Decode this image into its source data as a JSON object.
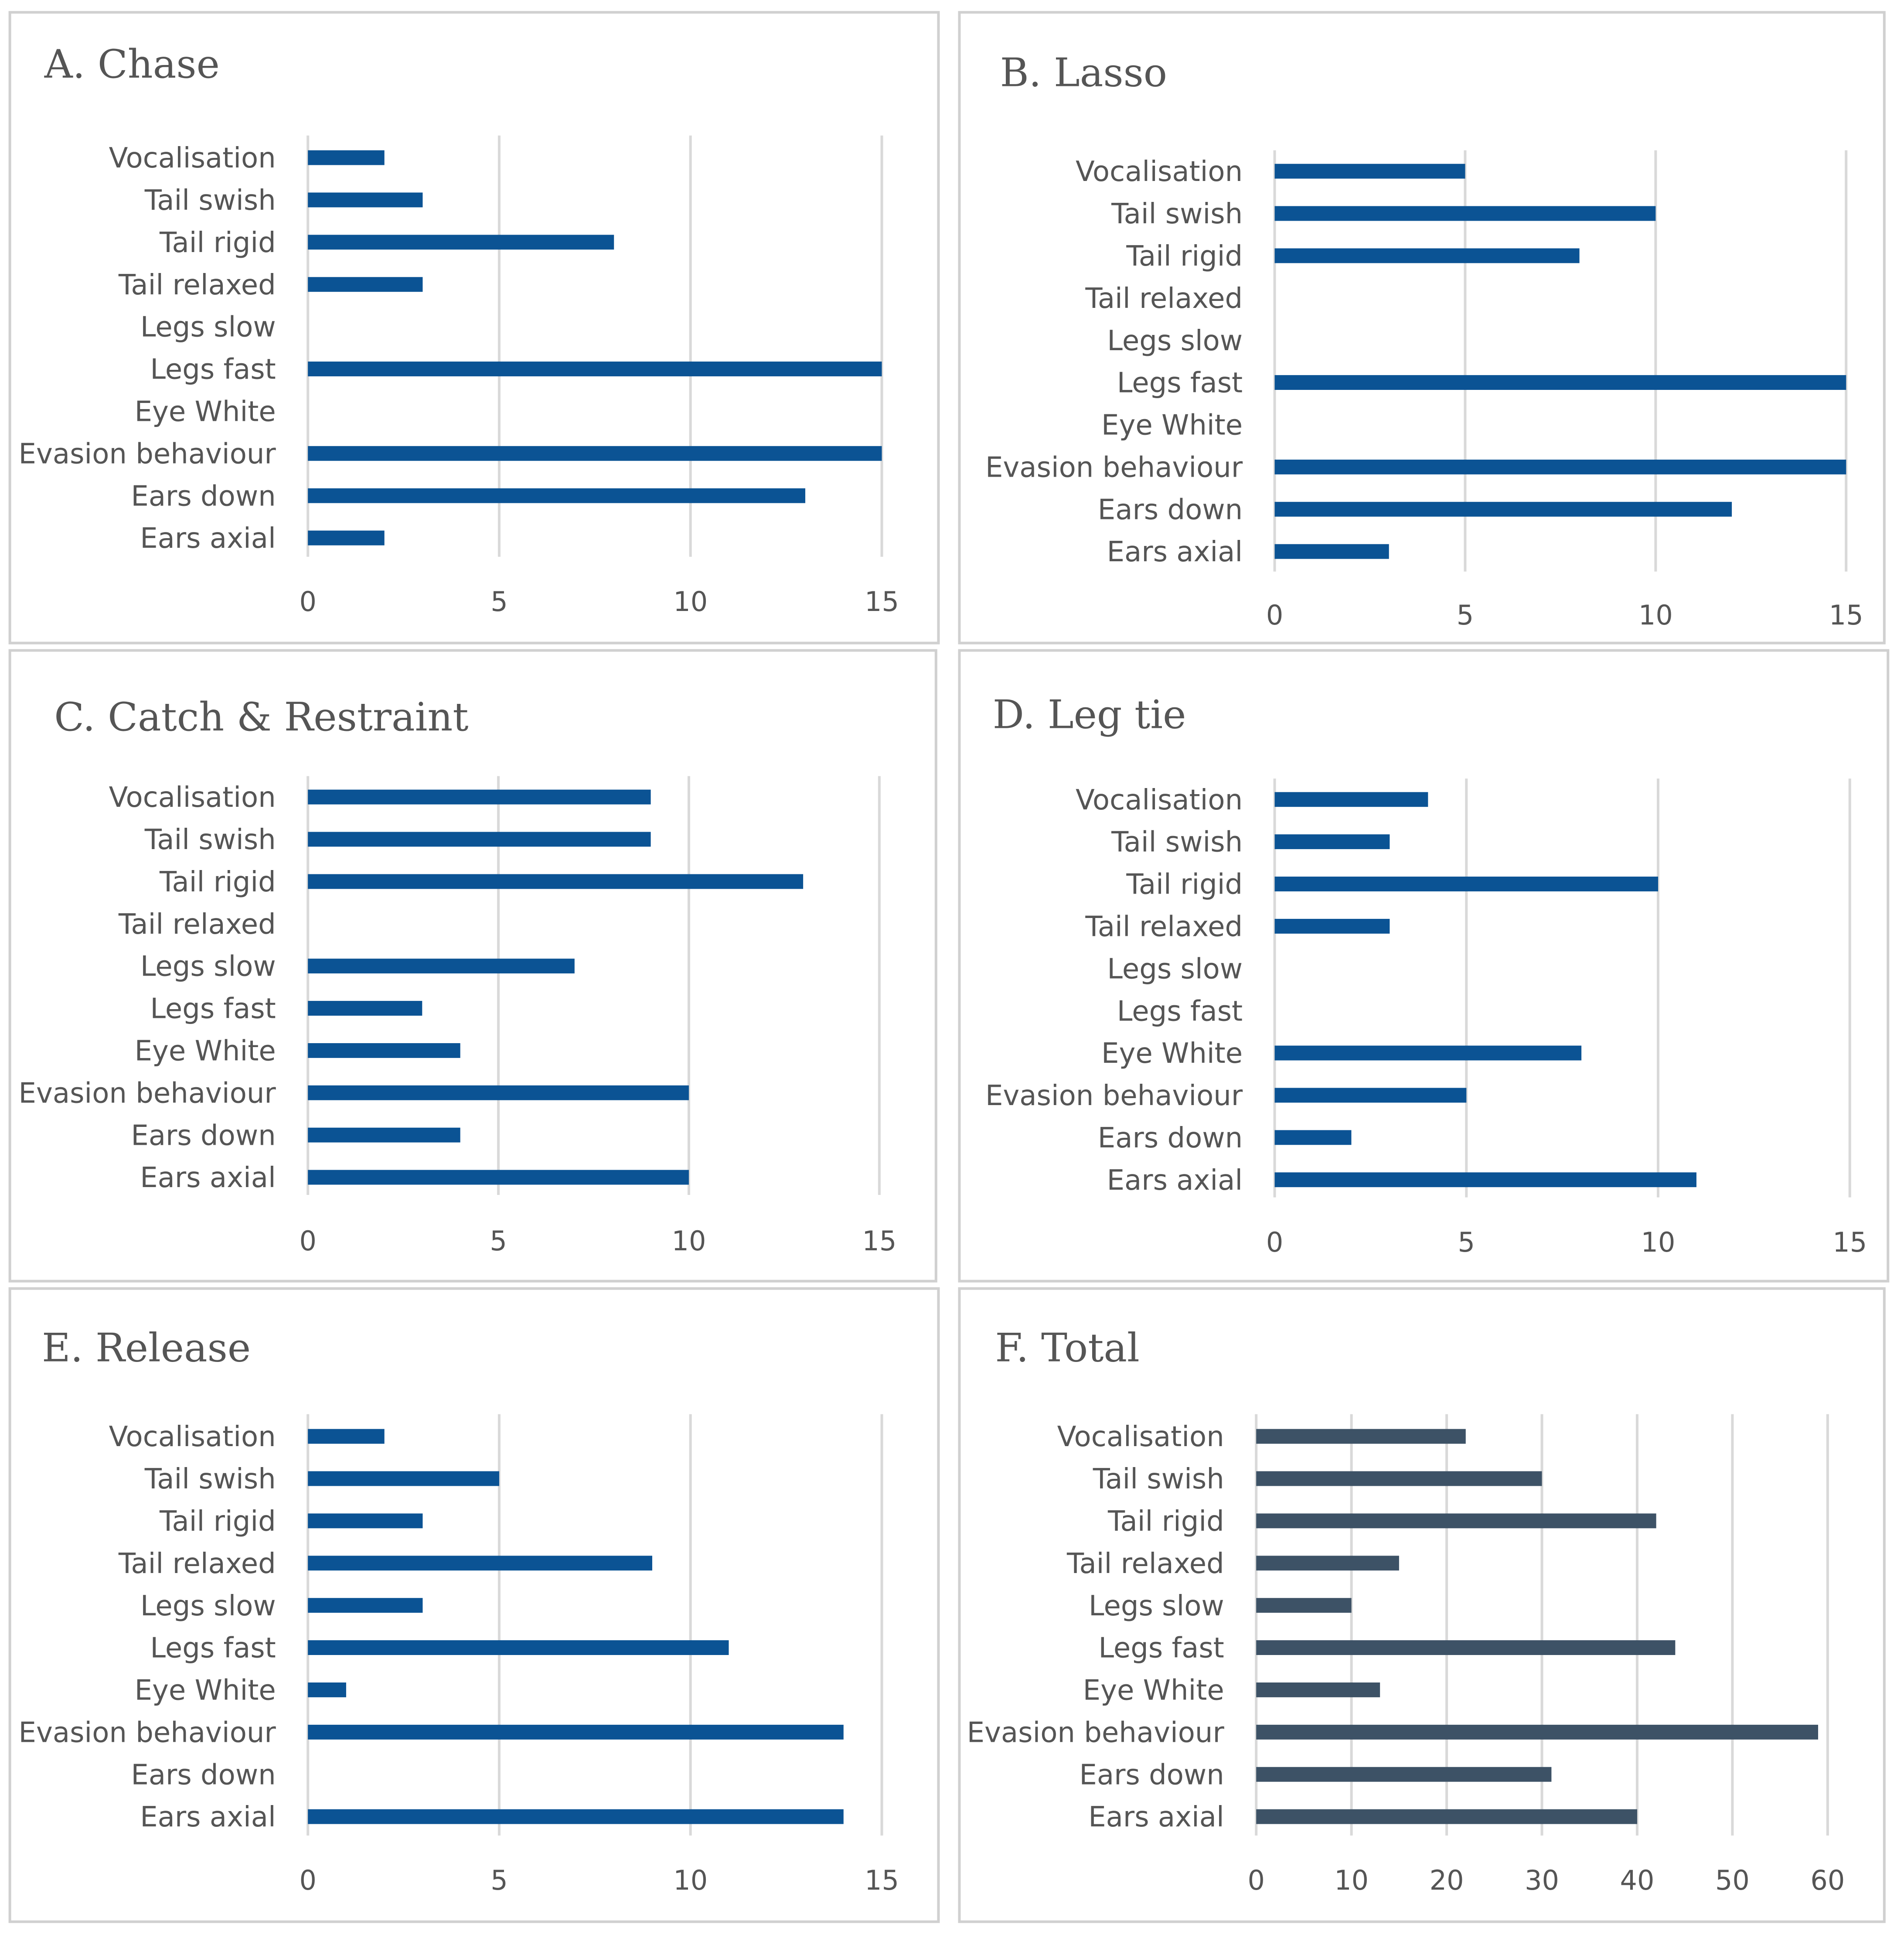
{
  "colors": {
    "primary": "#0b5394",
    "total": "#3d5266"
  },
  "chart_data": [
    {
      "type": "bar",
      "orientation": "horizontal",
      "title": "A. Chase",
      "categories": [
        "Vocalisation",
        "Tail swish",
        "Tail rigid",
        "Tail relaxed",
        "Legs slow",
        "Legs fast",
        "Eye White",
        "Evasion behaviour",
        "Ears down",
        "Ears axial"
      ],
      "values": [
        2,
        3,
        8,
        3,
        0,
        15,
        0,
        15,
        13,
        2
      ],
      "xlim": [
        0,
        15
      ],
      "ticks": [
        0,
        5,
        10,
        15
      ],
      "grid": true,
      "color": "primary"
    },
    {
      "type": "bar",
      "orientation": "horizontal",
      "title": "B. Lasso",
      "categories": [
        "Vocalisation",
        "Tail swish",
        "Tail rigid",
        "Tail relaxed",
        "Legs slow",
        "Legs fast",
        "Eye White",
        "Evasion behaviour",
        "Ears down",
        "Ears axial"
      ],
      "values": [
        5,
        10,
        8,
        0,
        0,
        15,
        0,
        15,
        12,
        3
      ],
      "xlim": [
        0,
        15
      ],
      "ticks": [
        0,
        5,
        10,
        15
      ],
      "grid": true,
      "color": "primary"
    },
    {
      "type": "bar",
      "orientation": "horizontal",
      "title": "C. Catch & Restraint",
      "categories": [
        "Vocalisation",
        "Tail swish",
        "Tail rigid",
        "Tail relaxed",
        "Legs slow",
        "Legs fast",
        "Eye White",
        "Evasion behaviour",
        "Ears down",
        "Ears axial"
      ],
      "values": [
        9,
        9,
        13,
        0,
        7,
        3,
        4,
        10,
        4,
        10
      ],
      "xlim": [
        0,
        15
      ],
      "ticks": [
        0,
        5,
        10,
        15
      ],
      "grid": true,
      "color": "primary"
    },
    {
      "type": "bar",
      "orientation": "horizontal",
      "title": "D. Leg tie",
      "categories": [
        "Vocalisation",
        "Tail swish",
        "Tail rigid",
        "Tail relaxed",
        "Legs slow",
        "Legs fast",
        "Eye White",
        "Evasion behaviour",
        "Ears down",
        "Ears axial"
      ],
      "values": [
        4,
        3,
        10,
        3,
        0,
        0,
        8,
        5,
        2,
        11
      ],
      "xlim": [
        0,
        15
      ],
      "ticks": [
        0,
        5,
        10,
        15
      ],
      "grid": true,
      "color": "primary"
    },
    {
      "type": "bar",
      "orientation": "horizontal",
      "title": "E. Release",
      "categories": [
        "Vocalisation",
        "Tail swish",
        "Tail rigid",
        "Tail relaxed",
        "Legs slow",
        "Legs fast",
        "Eye White",
        "Evasion behaviour",
        "Ears down",
        "Ears axial"
      ],
      "values": [
        2,
        5,
        3,
        9,
        3,
        11,
        1,
        14,
        0,
        14
      ],
      "xlim": [
        0,
        15
      ],
      "ticks": [
        0,
        5,
        10,
        15
      ],
      "grid": true,
      "color": "primary"
    },
    {
      "type": "bar",
      "orientation": "horizontal",
      "title": "F. Total",
      "categories": [
        "Vocalisation",
        "Tail swish",
        "Tail rigid",
        "Tail relaxed",
        "Legs slow",
        "Legs fast",
        "Eye White",
        "Evasion behaviour",
        "Ears down",
        "Ears axial"
      ],
      "values": [
        22,
        30,
        42,
        15,
        10,
        44,
        13,
        59,
        31,
        40
      ],
      "xlim": [
        0,
        60
      ],
      "ticks": [
        0,
        10,
        20,
        30,
        40,
        50,
        60
      ],
      "grid": true,
      "color": "total"
    }
  ]
}
